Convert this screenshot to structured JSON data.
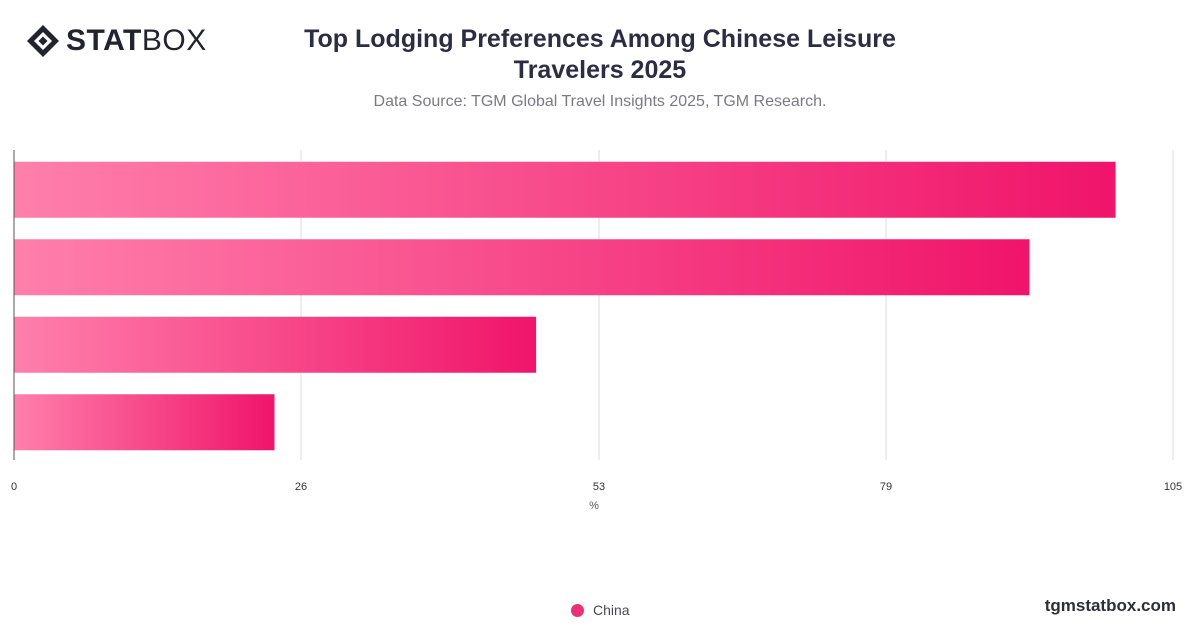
{
  "brand": {
    "logo_strong": "STAT",
    "logo_light": "BOX",
    "site": "tgmstatbox.com"
  },
  "header": {
    "title": "Top Lodging Preferences Among Chinese Leisure Travelers 2025",
    "subtitle": "Data Source: TGM Global Travel Insights 2025, TGM Research."
  },
  "legend": {
    "label": "China",
    "color": "#ef2e78"
  },
  "colors": {
    "bar_start": "#ff7fab",
    "bar_end": "#f0146a",
    "grid": "#dcdcdc",
    "axis": "#555555",
    "tick_text": "#333333"
  },
  "chart_data": {
    "type": "bar",
    "orientation": "horizontal",
    "categories": [
      "",
      "",
      "",
      ""
    ],
    "series": [
      {
        "name": "China",
        "values": [
          99.8,
          92,
          47.3,
          23.6
        ]
      }
    ],
    "xlabel": "%",
    "ylabel": "",
    "xlim": [
      0,
      105
    ],
    "xticks": [
      0,
      26,
      53,
      79,
      105
    ],
    "grid": true,
    "legend_position": "bottom"
  }
}
